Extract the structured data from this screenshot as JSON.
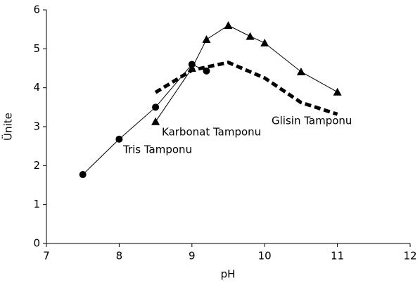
{
  "chart_data": {
    "type": "line",
    "x_label": "pH",
    "y_label": "Ünite",
    "xlim": [
      7,
      12
    ],
    "xticks": [
      7,
      8,
      9,
      10,
      11,
      12
    ],
    "ylim": [
      0,
      6
    ],
    "yticks": [
      0,
      1,
      2,
      3,
      4,
      5,
      6
    ],
    "grid": false,
    "series": [
      {
        "name": "Tris Tamponu",
        "color": "#000000",
        "marker": "circle",
        "dash": false,
        "x": [
          7.5,
          8,
          8.5,
          9,
          9.2
        ],
        "values": [
          1.77,
          2.68,
          3.5,
          4.6,
          4.43
        ]
      },
      {
        "name": "Karbonat Tamponu",
        "color": "#000000",
        "marker": "triangle",
        "dash": false,
        "x": [
          8.5,
          9,
          9.2,
          9.5,
          9.8,
          10,
          10.5,
          11
        ],
        "values": [
          3.13,
          4.5,
          5.24,
          5.6,
          5.32,
          5.15,
          4.41,
          3.89
        ]
      },
      {
        "name": "Glisin Tamponu",
        "color": "#000000",
        "marker": "none",
        "dash": true,
        "x": [
          8.5,
          9,
          9.5,
          10,
          10.5,
          11
        ],
        "values": [
          3.88,
          4.45,
          4.65,
          4.25,
          3.62,
          3.32
        ]
      }
    ]
  }
}
